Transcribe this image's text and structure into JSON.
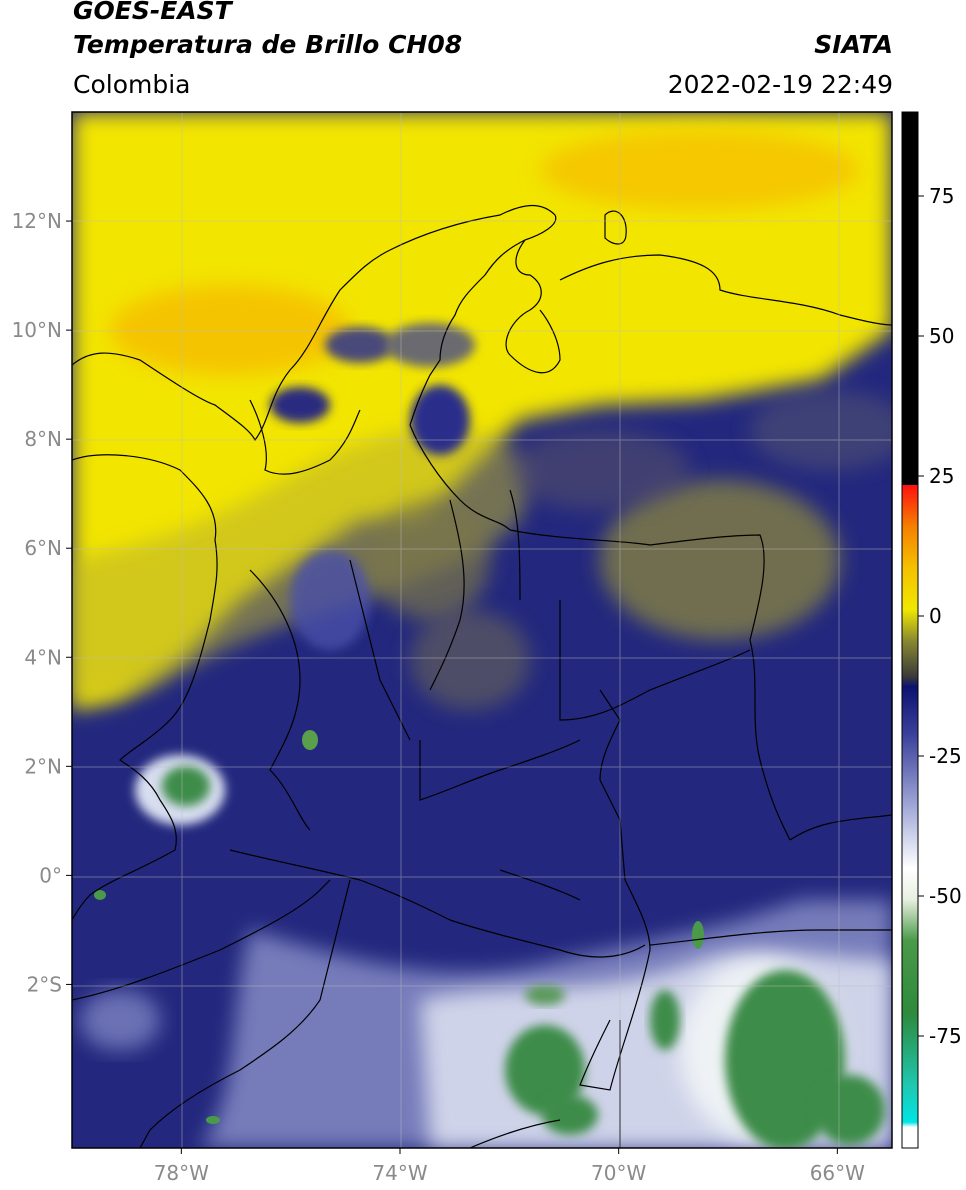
{
  "header": {
    "satellite": "GOES-EAST",
    "product": "Temperatura de Brillo CH08",
    "region": "Colombia",
    "agency": "SIATA",
    "datetime": "2022-02-19 22:49"
  },
  "map": {
    "lon_range": [
      -80.0,
      -65.0
    ],
    "lat_range": [
      -5.0,
      14.0
    ],
    "lat_ticks": [
      {
        "value": 12,
        "label": "12°N"
      },
      {
        "value": 10,
        "label": "10°N"
      },
      {
        "value": 8,
        "label": "8°N"
      },
      {
        "value": 6,
        "label": "6°N"
      },
      {
        "value": 4,
        "label": "4°N"
      },
      {
        "value": 2,
        "label": "2°N"
      },
      {
        "value": 0,
        "label": "0°"
      },
      {
        "value": -2,
        "label": "2°S"
      }
    ],
    "lon_ticks": [
      {
        "value": -78,
        "label": "78°W"
      },
      {
        "value": -74,
        "label": "74°W"
      },
      {
        "value": -70,
        "label": "70°W"
      },
      {
        "value": -66,
        "label": "66°W"
      }
    ],
    "gridlines": true
  },
  "colorbar": {
    "range": [
      -95,
      90
    ],
    "ticks": [
      {
        "value": 75,
        "label": "75"
      },
      {
        "value": 50,
        "label": "50"
      },
      {
        "value": 25,
        "label": "25"
      },
      {
        "value": 0,
        "label": "0"
      },
      {
        "value": -25,
        "label": "-25"
      },
      {
        "value": -50,
        "label": "-50"
      },
      {
        "value": -75,
        "label": "-75"
      }
    ]
  },
  "colors": {
    "warm_yellow": "#f2e600",
    "orange": "#f5a800",
    "navy": "#1f237a",
    "pale": "#e8ecf5",
    "green": "#3d8c4a",
    "border": "#000000"
  }
}
